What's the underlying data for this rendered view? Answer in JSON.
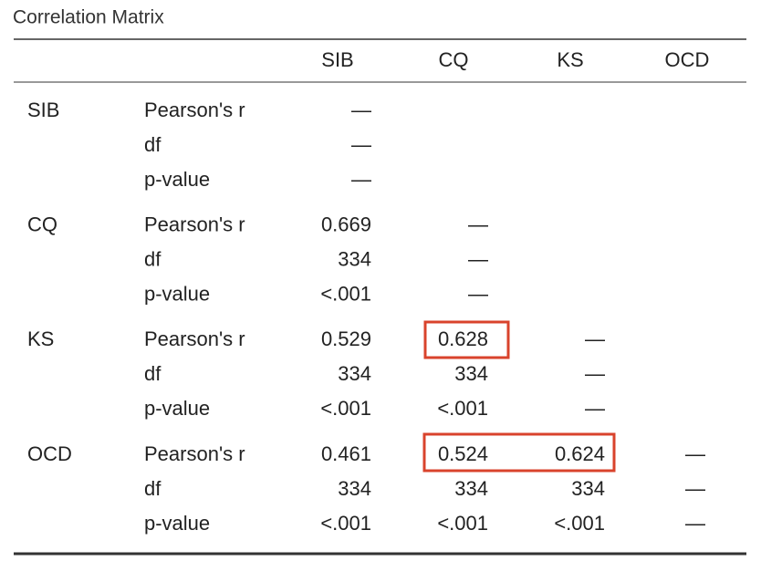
{
  "title": "Correlation Matrix",
  "columns": [
    "SIB",
    "CQ",
    "KS",
    "OCD"
  ],
  "rows": [
    {
      "group": "SIB",
      "stat": "Pearson's r",
      "cells": [
        "—"
      ]
    },
    {
      "stat": "df",
      "cells": [
        "—"
      ]
    },
    {
      "stat": "p-value",
      "cells": [
        "—"
      ]
    },
    {
      "group": "CQ",
      "stat": "Pearson's r",
      "cells": [
        "0.669",
        "—"
      ]
    },
    {
      "stat": "df",
      "cells": [
        "334",
        "—"
      ]
    },
    {
      "stat": "p-value",
      "cells": [
        "<.001",
        "—"
      ]
    },
    {
      "group": "KS",
      "stat": "Pearson's r",
      "cells": [
        "0.529",
        "0.628",
        "—"
      ]
    },
    {
      "stat": "df",
      "cells": [
        "334",
        "334",
        "—"
      ]
    },
    {
      "stat": "p-value",
      "cells": [
        "<.001",
        "<.001",
        "—"
      ]
    },
    {
      "group": "OCD",
      "stat": "Pearson's r",
      "cells": [
        "0.461",
        "0.524",
        "0.624",
        "—"
      ]
    },
    {
      "stat": "df",
      "cells": [
        "334",
        "334",
        "334",
        "—"
      ]
    },
    {
      "stat": "p-value",
      "cells": [
        "<.001",
        "<.001",
        "<.001",
        "—"
      ]
    }
  ]
}
